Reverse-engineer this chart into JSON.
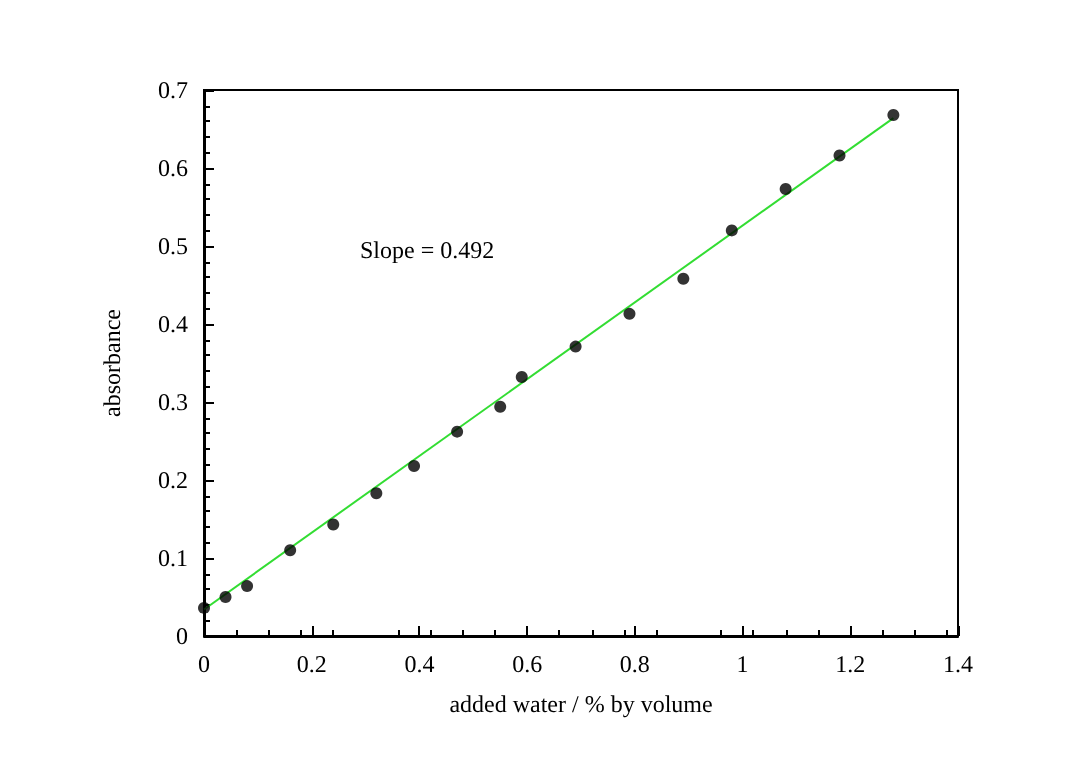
{
  "chart_data": {
    "type": "scatter",
    "xlabel": "added water / % by volume",
    "ylabel": "absorbance",
    "annotations": [
      "Slope = 0.492"
    ],
    "xlim": [
      0,
      1.4
    ],
    "xticks": [
      0,
      0.2,
      0.4,
      0.6,
      0.8,
      1,
      1.2,
      1.4
    ],
    "ylim": [
      0,
      0.7
    ],
    "yticks": [
      0,
      0.1,
      0.2,
      0.3,
      0.4,
      0.5,
      0.6,
      0.7
    ],
    "grid": false,
    "series": [
      {
        "color": "#000000",
        "marker": "circle",
        "x": [
          0,
          0.04,
          0.08,
          0.16,
          0.24,
          0.32,
          0.39,
          0.47,
          0.55,
          0.59,
          0.69,
          0.79,
          0.89,
          0.98,
          1.08,
          1.18,
          1.28
        ],
        "values": [
          0.036,
          0.05,
          0.064,
          0.11,
          0.143,
          0.183,
          0.218,
          0.262,
          0.294,
          0.332,
          0.371,
          0.413,
          0.458,
          0.52,
          0.573,
          0.616,
          0.668
        ]
      },
      {
        "type": "line",
        "color": "#33dd33",
        "marker": "none",
        "line_style": "solid",
        "x": [
          0,
          1.28
        ],
        "values": [
          0.034,
          0.664
        ]
      }
    ]
  }
}
